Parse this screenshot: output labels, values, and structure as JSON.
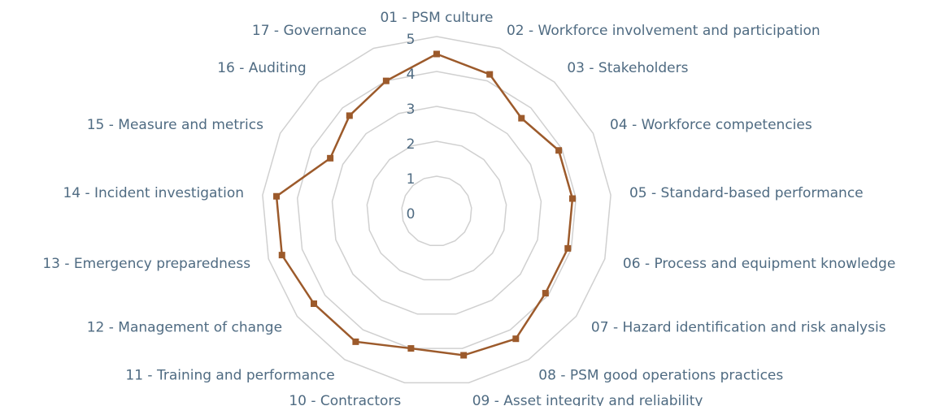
{
  "chart_data": {
    "type": "radar",
    "categories": [
      "01 - PSM culture",
      "02 - Workforce involvement and participation",
      "03 - Stakeholders",
      "04 - Workforce competencies",
      "05 - Standard-based performance",
      "06 - Process and equipment knowledge",
      "07 - Hazard identification and risk analysis",
      "08 - PSM good operations practices",
      "09 - Asset integrity and reliability",
      "10 - Contractors",
      "11 - Training and performance",
      "12 - Management of change",
      "13 - Emergency preparedness",
      "14 - Incident investigation",
      "15 - Measure and metrics",
      "16 - Auditing",
      "17 - Governance"
    ],
    "values": [
      4.5,
      4.2,
      3.6,
      3.9,
      3.9,
      3.9,
      3.9,
      4.3,
      4.2,
      4.0,
      4.4,
      4.4,
      4.6,
      4.6,
      3.4,
      3.7,
      4.0
    ],
    "color": "#9c5a2b",
    "rlim": [
      0,
      5
    ],
    "rticks": [
      0,
      1,
      2,
      3,
      4,
      5
    ],
    "grid": true
  }
}
